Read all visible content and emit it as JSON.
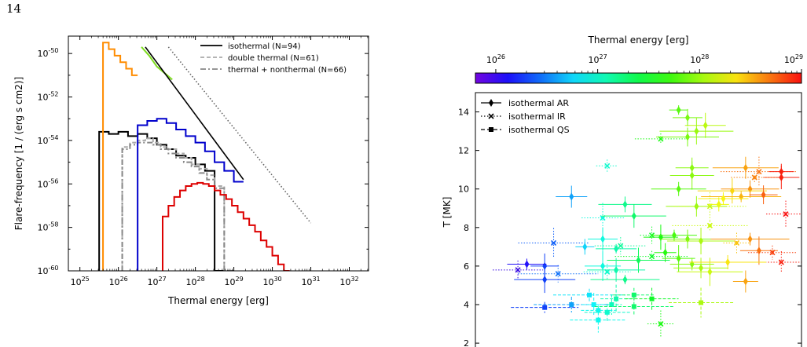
{
  "page_number": "14",
  "chart_data": [
    {
      "type": "line",
      "xlabel": "Thermal energy [erg]",
      "ylabel": "Flare-frequency [1 / (erg s cm2)]",
      "x_scale": "log",
      "y_scale": "log",
      "xlim_exp": [
        24.7,
        32.5
      ],
      "ylim_exp": [
        -60,
        -49.2
      ],
      "x_tick_labels": [
        "10^25",
        "10^26",
        "10^27",
        "10^28",
        "10^29",
        "10^30",
        "10^31",
        "10^32"
      ],
      "y_tick_labels": [
        "10^-50",
        "10^-52",
        "10^-54",
        "10^-56",
        "10^-58",
        "10^-60"
      ],
      "legend_position": "top-right",
      "legend": [
        {
          "label": "isothermal (N=94)",
          "color": "#000000",
          "dash": "solid"
        },
        {
          "label": "double thermal (N=61)",
          "color": "#aaaaaa",
          "dash": "dashed"
        },
        {
          "label": "thermal + nonthermal (N=66)",
          "color": "#888888",
          "dash": "dashdot"
        }
      ],
      "series": [
        {
          "name": "isothermal (N=94)",
          "color": "#000000",
          "dash": "solid",
          "step": true,
          "x_exp": [
            25.5,
            25.75,
            26.0,
            26.25,
            26.5,
            26.75,
            27.0,
            27.25,
            27.5,
            27.75,
            28.0,
            28.25,
            28.5
          ],
          "y_exp": [
            -53.6,
            -53.7,
            -53.6,
            -53.8,
            -53.7,
            -53.9,
            -54.2,
            -54.4,
            -54.7,
            -54.8,
            -55.1,
            -55.4,
            -60
          ]
        },
        {
          "name": "double thermal (N=61)",
          "color": "#aaaaaa",
          "dash": "dashed",
          "step": true,
          "x_exp": [
            26.1,
            26.3,
            26.5,
            26.7,
            26.9,
            27.1,
            27.3,
            27.5,
            27.7,
            27.9,
            28.1,
            28.3,
            28.5,
            28.75
          ],
          "y_exp": [
            -54.3,
            -54.1,
            -54.0,
            -53.9,
            -54.1,
            -54.3,
            -54.4,
            -54.6,
            -54.8,
            -55.1,
            -55.3,
            -55.6,
            -56.1,
            -60
          ]
        },
        {
          "name": "thermal + nonthermal (N=66)",
          "color": "#888888",
          "dash": "dashdot",
          "step": true,
          "x_exp": [
            26.1,
            26.3,
            26.5,
            26.7,
            26.9,
            27.1,
            27.3,
            27.5,
            27.7,
            27.9,
            28.1,
            28.3,
            28.5,
            28.75
          ],
          "y_exp": [
            -54.4,
            -54.2,
            -54.1,
            -54.1,
            -54.2,
            -54.4,
            -54.6,
            -54.8,
            -55.0,
            -55.2,
            -55.5,
            -55.8,
            -56.2,
            -60
          ]
        },
        {
          "name": "",
          "color": "#0000cc",
          "dash": "solid",
          "step": true,
          "x_exp": [
            26.5,
            26.75,
            27.0,
            27.25,
            27.5,
            27.75,
            28.0,
            28.25,
            28.5,
            28.75,
            29.0
          ],
          "y_exp": [
            -53.3,
            -53.1,
            -53.0,
            -53.2,
            -53.5,
            -53.8,
            -54.1,
            -54.5,
            -55.0,
            -55.4,
            -55.9
          ]
        },
        {
          "name": "",
          "color": "#dd0000",
          "dash": "solid",
          "step": true,
          "x_exp": [
            27.15,
            27.3,
            27.45,
            27.6,
            27.75,
            27.9,
            28.05,
            28.2,
            28.35,
            28.5,
            28.65,
            28.8,
            28.95,
            29.1,
            29.25,
            29.4,
            29.55,
            29.7,
            29.85,
            30.0,
            30.15,
            30.3
          ],
          "y_exp": [
            -57.5,
            -57.0,
            -56.6,
            -56.3,
            -56.1,
            -56.0,
            -55.95,
            -56.0,
            -56.1,
            -56.3,
            -56.5,
            -56.7,
            -57.0,
            -57.3,
            -57.6,
            -57.9,
            -58.2,
            -58.6,
            -58.9,
            -59.3,
            -59.7,
            -60
          ]
        },
        {
          "name": "",
          "color": "#ff8c00",
          "dash": "solid",
          "step": true,
          "x_exp": [
            25.6,
            25.75,
            25.9,
            26.05,
            26.2,
            26.35
          ],
          "y_exp": [
            -49.5,
            -49.8,
            -50.1,
            -50.4,
            -50.7,
            -51.0
          ]
        },
        {
          "name": "",
          "color": "#7fdd22",
          "dash": "solid",
          "step": false,
          "x_exp": [
            26.6,
            26.8,
            27.0,
            27.2,
            27.4
          ],
          "y_exp": [
            -49.7,
            -50.1,
            -50.6,
            -50.9,
            -51.2
          ]
        },
        {
          "name": "",
          "color": "#000000",
          "dash": "solid",
          "step": false,
          "fit": true,
          "x_exp": [
            26.7,
            29.25
          ],
          "y_exp": [
            -49.7,
            -55.8
          ]
        },
        {
          "name": "",
          "color": "#666666",
          "dash": "dotted",
          "step": false,
          "fit": true,
          "x_exp": [
            27.3,
            31.0
          ],
          "y_exp": [
            -49.7,
            -57.8
          ]
        }
      ]
    },
    {
      "type": "scatter",
      "xlabel": "",
      "ylabel": "T [MK]",
      "colorbar_label": "Thermal energy [erg]",
      "colorbar_tick_labels": [
        "10^26",
        "10^27",
        "10^28",
        "10^29"
      ],
      "colormap": "rainbow",
      "y_ticks": [
        2,
        4,
        6,
        8,
        10,
        12,
        14
      ],
      "ylim": [
        1.8,
        15.0
      ],
      "legend_position": "top-left",
      "legend": [
        {
          "label": "isothermal AR",
          "marker": "diamond",
          "dash": "solid"
        },
        {
          "label": "isothermal IR",
          "marker": "x",
          "dash": "dotted"
        },
        {
          "label": "isothermal QS",
          "marker": "square",
          "dash": "dashed"
        }
      ],
      "points": [
        {
          "e": 27.8,
          "t": 14.1,
          "g": "AR"
        },
        {
          "e": 27.9,
          "t": 13.7,
          "g": "AR"
        },
        {
          "e": 28.1,
          "t": 13.3,
          "g": "AR"
        },
        {
          "e": 27.6,
          "t": 12.6,
          "g": "IR"
        },
        {
          "e": 27.9,
          "t": 12.7,
          "g": "AR"
        },
        {
          "e": 28.0,
          "t": 13.0,
          "g": "AR"
        },
        {
          "e": 27.0,
          "t": 11.2,
          "g": "IR"
        },
        {
          "e": 27.95,
          "t": 11.1,
          "g": "AR"
        },
        {
          "e": 27.95,
          "t": 10.7,
          "g": "AR"
        },
        {
          "e": 27.8,
          "t": 10.0,
          "g": "AR"
        },
        {
          "e": 28.55,
          "t": 11.1,
          "g": "AR"
        },
        {
          "e": 28.7,
          "t": 10.9,
          "g": "IR"
        },
        {
          "e": 28.95,
          "t": 10.9,
          "g": "AR"
        },
        {
          "e": 28.95,
          "t": 10.6,
          "g": "AR"
        },
        {
          "e": 28.65,
          "t": 10.6,
          "g": "IR"
        },
        {
          "e": 28.6,
          "t": 10.0,
          "g": "AR"
        },
        {
          "e": 28.4,
          "t": 9.9,
          "g": "AR"
        },
        {
          "e": 28.5,
          "t": 9.6,
          "g": "AR"
        },
        {
          "e": 28.75,
          "t": 9.7,
          "g": "AR"
        },
        {
          "e": 29.0,
          "t": 8.7,
          "g": "IR"
        },
        {
          "e": 28.3,
          "t": 9.5,
          "g": "AR"
        },
        {
          "e": 28.0,
          "t": 9.1,
          "g": "AR"
        },
        {
          "e": 28.15,
          "t": 9.1,
          "g": "IR"
        },
        {
          "e": 28.25,
          "t": 9.2,
          "g": "AR"
        },
        {
          "e": 26.6,
          "t": 9.6,
          "g": "AR"
        },
        {
          "e": 26.95,
          "t": 8.5,
          "g": "IR"
        },
        {
          "e": 27.2,
          "t": 9.2,
          "g": "AR"
        },
        {
          "e": 27.3,
          "t": 8.6,
          "g": "AR"
        },
        {
          "e": 28.15,
          "t": 8.1,
          "g": "IR"
        },
        {
          "e": 27.5,
          "t": 7.6,
          "g": "IR"
        },
        {
          "e": 27.6,
          "t": 7.5,
          "g": "AR"
        },
        {
          "e": 27.75,
          "t": 7.6,
          "g": "AR"
        },
        {
          "e": 27.9,
          "t": 7.4,
          "g": "AR"
        },
        {
          "e": 28.05,
          "t": 7.3,
          "g": "AR"
        },
        {
          "e": 28.6,
          "t": 7.4,
          "g": "AR"
        },
        {
          "e": 28.45,
          "t": 7.2,
          "g": "IR"
        },
        {
          "e": 28.7,
          "t": 6.8,
          "g": "AR"
        },
        {
          "e": 28.85,
          "t": 6.7,
          "g": "IR"
        },
        {
          "e": 28.95,
          "t": 6.2,
          "g": "IR"
        },
        {
          "e": 26.4,
          "t": 7.2,
          "g": "IR"
        },
        {
          "e": 26.75,
          "t": 7.0,
          "g": "AR"
        },
        {
          "e": 26.95,
          "t": 7.4,
          "g": "AR"
        },
        {
          "e": 27.1,
          "t": 6.9,
          "g": "AR"
        },
        {
          "e": 27.15,
          "t": 7.05,
          "g": "IR"
        },
        {
          "e": 27.35,
          "t": 6.3,
          "g": "AR"
        },
        {
          "e": 27.5,
          "t": 6.5,
          "g": "IR"
        },
        {
          "e": 27.65,
          "t": 6.7,
          "g": "AR"
        },
        {
          "e": 27.8,
          "t": 6.4,
          "g": "AR"
        },
        {
          "e": 27.95,
          "t": 6.1,
          "g": "AR"
        },
        {
          "e": 28.05,
          "t": 5.9,
          "g": "AR"
        },
        {
          "e": 28.15,
          "t": 5.7,
          "g": "AR"
        },
        {
          "e": 28.35,
          "t": 6.2,
          "g": "AR"
        },
        {
          "e": 28.55,
          "t": 5.2,
          "g": "AR"
        },
        {
          "e": 26.95,
          "t": 6.0,
          "g": "AR"
        },
        {
          "e": 27.0,
          "t": 5.7,
          "g": "IR"
        },
        {
          "e": 27.1,
          "t": 5.8,
          "g": "AR"
        },
        {
          "e": 27.2,
          "t": 5.3,
          "g": "AR"
        },
        {
          "e": 26.45,
          "t": 5.6,
          "g": "IR"
        },
        {
          "e": 26.3,
          "t": 6.0,
          "g": "AR"
        },
        {
          "e": 26.1,
          "t": 6.1,
          "g": "AR"
        },
        {
          "e": 26.0,
          "t": 5.8,
          "g": "IR"
        },
        {
          "e": 26.3,
          "t": 5.3,
          "g": "AR"
        },
        {
          "e": 26.8,
          "t": 4.5,
          "g": "QS"
        },
        {
          "e": 27.05,
          "t": 4.0,
          "g": "QS"
        },
        {
          "e": 27.1,
          "t": 4.3,
          "g": "QS"
        },
        {
          "e": 27.3,
          "t": 4.5,
          "g": "QS"
        },
        {
          "e": 27.5,
          "t": 4.3,
          "g": "QS"
        },
        {
          "e": 28.05,
          "t": 4.1,
          "g": "QS"
        },
        {
          "e": 26.6,
          "t": 4.0,
          "g": "QS"
        },
        {
          "e": 26.85,
          "t": 4.0,
          "g": "QS"
        },
        {
          "e": 26.9,
          "t": 3.7,
          "g": "QS"
        },
        {
          "e": 27.0,
          "t": 3.6,
          "g": "QS"
        },
        {
          "e": 26.9,
          "t": 3.2,
          "g": "QS"
        },
        {
          "e": 26.3,
          "t": 3.85,
          "g": "QS"
        },
        {
          "e": 27.3,
          "t": 3.9,
          "g": "QS"
        },
        {
          "e": 27.6,
          "t": 3.0,
          "g": "IR"
        }
      ]
    }
  ]
}
